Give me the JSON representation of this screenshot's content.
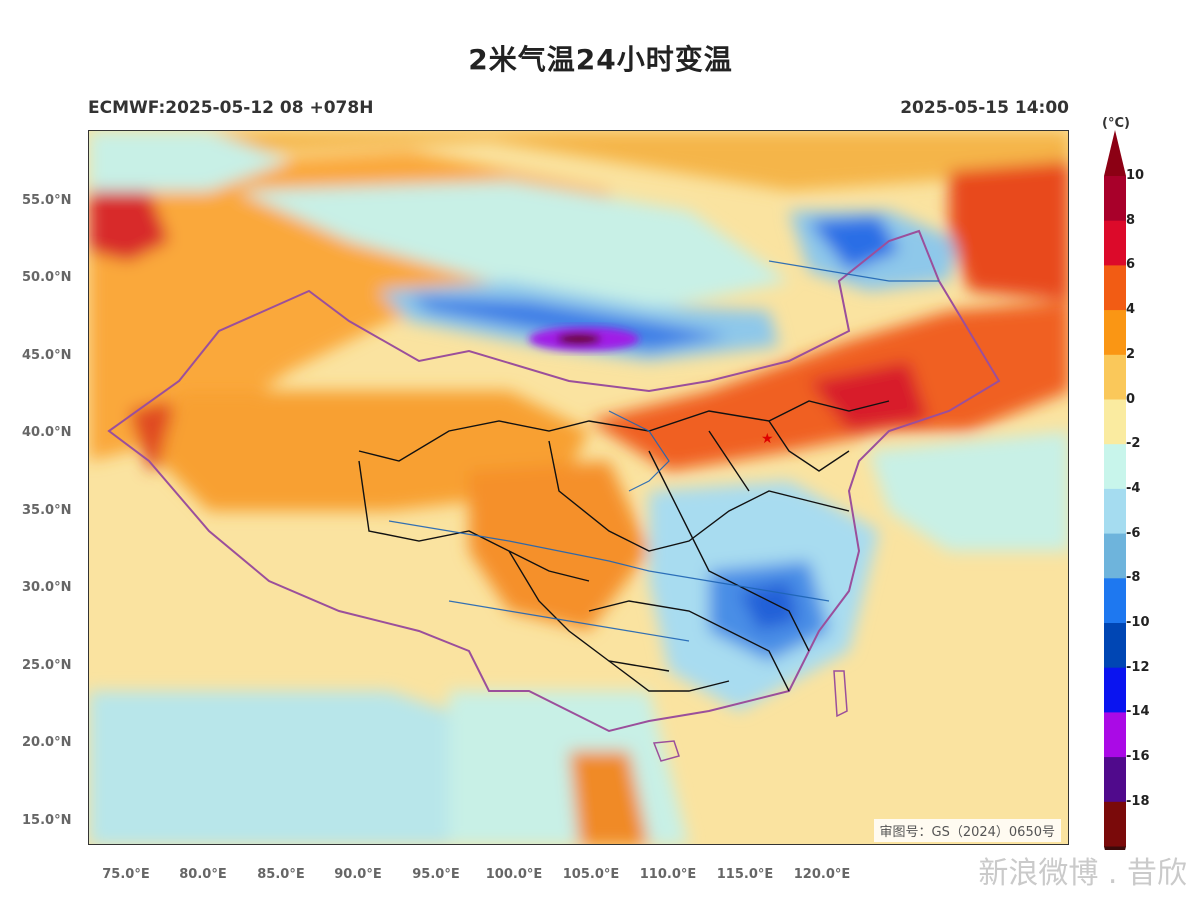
{
  "title": "2米气温24小时变温",
  "subtitle_left": "ECMWF:2025-05-12 08 +078H",
  "subtitle_right": "2025-05-15 14:00",
  "review_number": "审图号：GS（2024）0650号",
  "watermark": "新浪微博 . 昔欣",
  "colorbar": {
    "unit": "(°C)",
    "labels": [
      "10",
      "8",
      "6",
      "4",
      "2",
      "0",
      "-2",
      "-4",
      "-6",
      "-8",
      "-10",
      "-12",
      "-14",
      "-16",
      "-18"
    ],
    "colors": [
      "#a8002a",
      "#dc0a2a",
      "#f25c14",
      "#fa9614",
      "#fac85a",
      "#faeba0",
      "#c8f5eb",
      "#a5dcf0",
      "#6eb4dc",
      "#1e78f0",
      "#0046b4",
      "#0a14f0",
      "#aa0ae6",
      "#500a8c",
      "#7a0a0a"
    ],
    "top_cap_color": "#8c0014",
    "bottom_cap_color": "#3c0a0a"
  },
  "lat_axis": [
    "55.0°N",
    "50.0°N",
    "45.0°N",
    "40.0°N",
    "35.0°N",
    "30.0°N",
    "25.0°N",
    "20.0°N",
    "15.0°N"
  ],
  "lon_axis": [
    "75.0°E",
    "80.0°E",
    "85.0°E",
    "90.0°E",
    "95.0°E",
    "100.0°E",
    "105.0°E",
    "110.0°E",
    "115.0°E",
    "120.0°E"
  ],
  "map_colors": {
    "border_purple": "#9b4f9b",
    "province_black": "#111111",
    "river_blue": "#1e64b4"
  }
}
